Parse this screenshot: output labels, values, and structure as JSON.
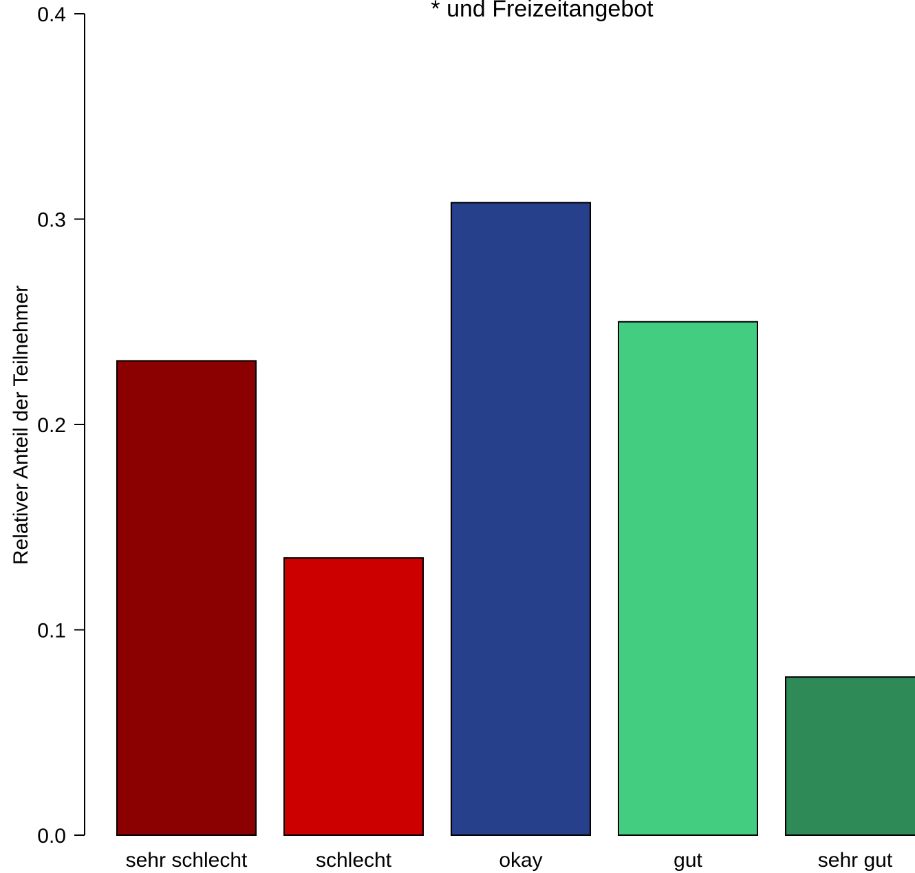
{
  "chart_data": {
    "type": "bar",
    "title": "* und Freizeitangebot",
    "xlabel": "",
    "ylabel": "Relativer Anteil der Teilnehmer",
    "categories": [
      "sehr schlecht",
      "schlecht",
      "okay",
      "gut",
      "sehr gut"
    ],
    "values": [
      0.231,
      0.135,
      0.308,
      0.25,
      0.077
    ],
    "colors": [
      "#8B0000",
      "#CD0000",
      "#27408B",
      "#43CD80",
      "#2E8B57"
    ],
    "ylim": [
      0,
      0.4
    ],
    "yticks": [
      0,
      0.1,
      0.2,
      0.3,
      0.4
    ],
    "ytick_labels": [
      "0.0",
      "0.1",
      "0.2",
      "0.3",
      "0.4"
    ],
    "grid": false
  }
}
